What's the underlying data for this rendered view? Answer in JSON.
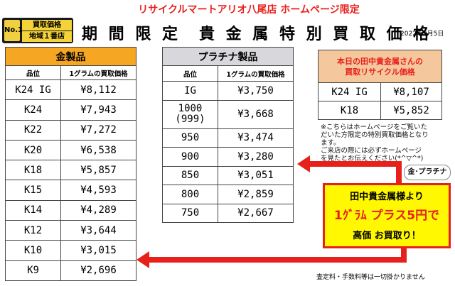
{
  "header": {
    "top_line": "リサイクルマートアリオ八尾店 ホームページ限定",
    "badge_no1": "No.1",
    "badge_line1": "買取価格",
    "badge_line2": "地域１番店",
    "title_left": "期 間 限 定",
    "title_right": "貴 金 属 特 別 買 取 価 格",
    "date": "2022年9月5日"
  },
  "gold_table": {
    "title": "金製品",
    "col1": "品位",
    "col2": "1グラムの買取価格",
    "rows": [
      {
        "grade": "K24 IG",
        "price": "¥8,112"
      },
      {
        "grade": "K24",
        "price": "¥7,943"
      },
      {
        "grade": "K22",
        "price": "¥7,272"
      },
      {
        "grade": "K20",
        "price": "¥6,538"
      },
      {
        "grade": "K18",
        "price": "¥5,857"
      },
      {
        "grade": "K15",
        "price": "¥4,593"
      },
      {
        "grade": "K14",
        "price": "¥4,289"
      },
      {
        "grade": "K12",
        "price": "¥3,644"
      },
      {
        "grade": "K10",
        "price": "¥3,015"
      },
      {
        "grade": "K9",
        "price": "¥2,696"
      }
    ]
  },
  "platinum_table": {
    "title": "プラチナ製品",
    "col1": "品位",
    "col2": "1グラムの買取価格",
    "rows": [
      {
        "grade": "IG",
        "grade2": "",
        "price": "¥3,750"
      },
      {
        "grade": "1000",
        "grade2": "(999)",
        "price": "¥3,668"
      },
      {
        "grade": "950",
        "grade2": "",
        "price": "¥3,474"
      },
      {
        "grade": "900",
        "grade2": "",
        "price": "¥3,280"
      },
      {
        "grade": "850",
        "grade2": "",
        "price": "¥3,051"
      },
      {
        "grade": "800",
        "grade2": "",
        "price": "¥2,859"
      },
      {
        "grade": "750",
        "grade2": "",
        "price": "¥2,667"
      }
    ]
  },
  "today_table": {
    "title_line1": "本日の田中貴金属さんの",
    "title_line2": "買取リサイクル価格",
    "rows": [
      {
        "grade": "K24 IG",
        "price": "¥8,107"
      },
      {
        "grade": "K18",
        "price": "¥5,852"
      }
    ]
  },
  "note": {
    "line1": "※こちらはホームページをご覧いた",
    "line2": "だいた方限定の特別買取価格となり",
    "line3": "ます。",
    "line4": "ご来店の際には必ずホームページ",
    "line5": "を見たとお伝えください(*^▽^*)"
  },
  "promo": {
    "tag": "金･プラチナ",
    "line1": "田中貴金属様より",
    "line2": "1ｸﾞﾗﾑ プラス5円で",
    "line3": "高価 お買取り！"
  },
  "footer": "査定料・手数料等は一切掛かりません",
  "colors": {
    "accent_red": "#e8201c",
    "gold_header": "#f5a623",
    "platinum_header": "#d8d8dc",
    "promo_yellow": "#fff800"
  }
}
